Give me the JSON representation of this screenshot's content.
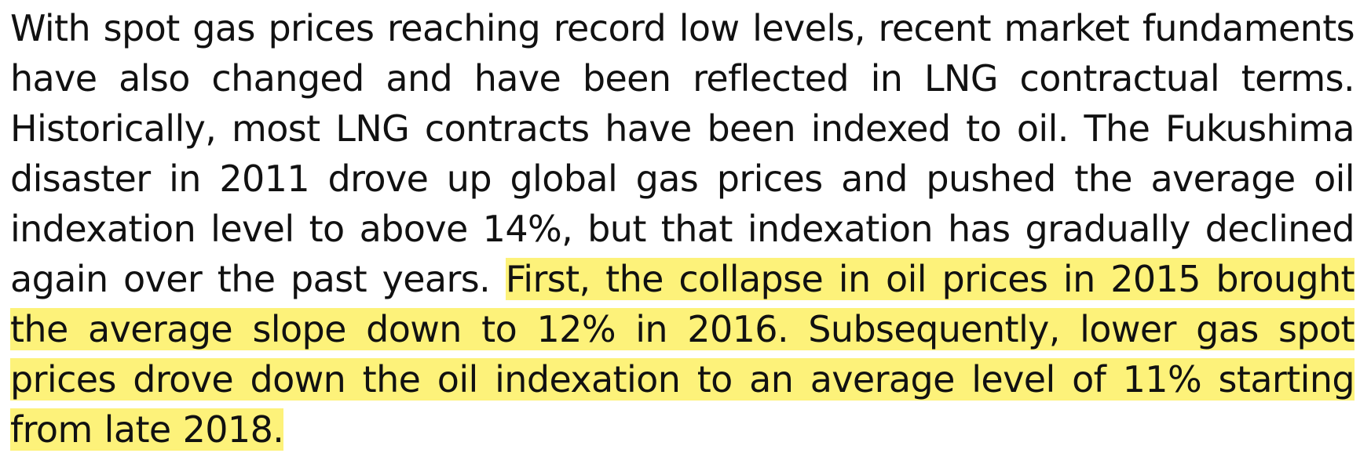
{
  "paragraph": {
    "text": "With spot gas prices reaching record low levels, recent market fundaments have also changed and have been reflected in LNG contractual terms. Historically, most LNG contracts have been indexed to oil. The Fukushima disaster in 2011 drove up global gas prices and pushed the average oil indexation level to above 14%, but that indexation has gradually declined again over the past years.",
    "highlighted": "First, the collapse in oil prices in 2015 brought the average slope down to 12% in 2016. Subsequently, lower gas spot prices drove down the oil indexation to an average level of 11% starting from late 2018."
  }
}
